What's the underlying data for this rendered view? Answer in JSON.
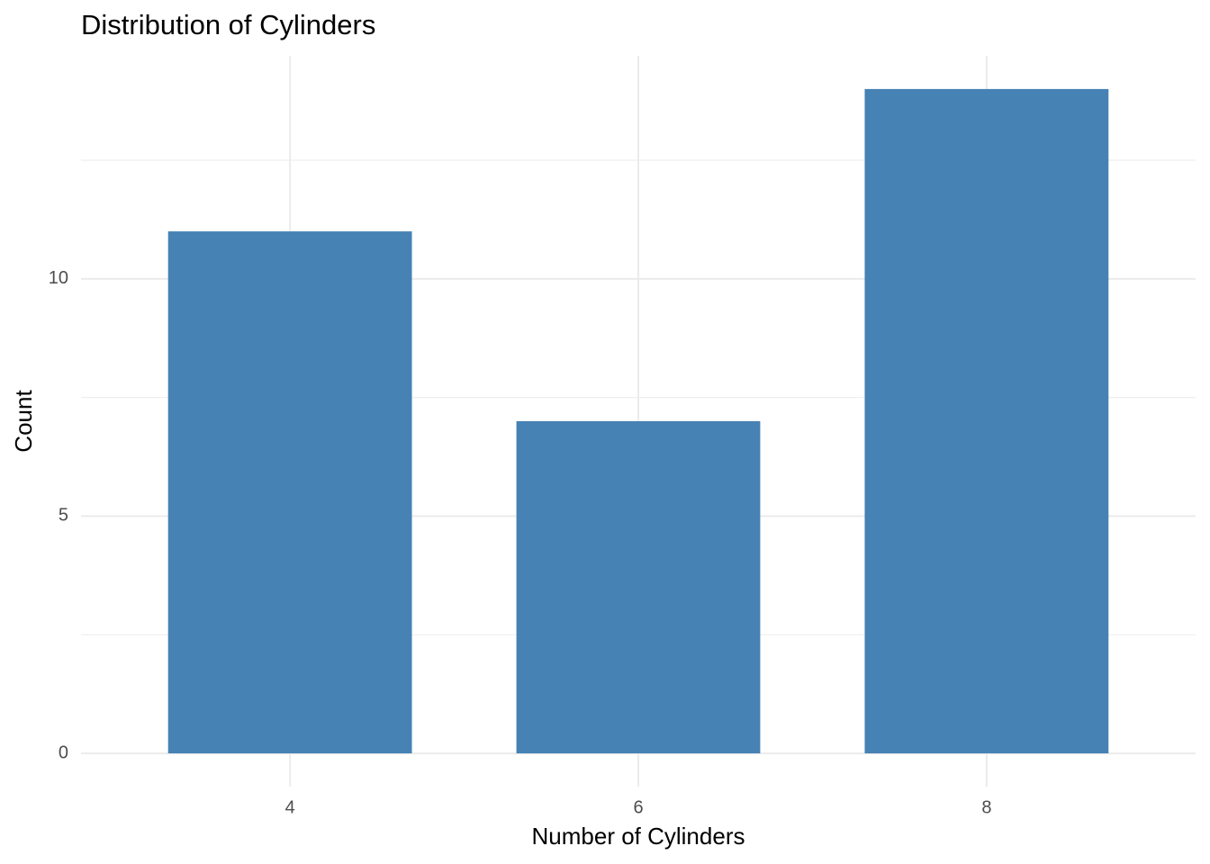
{
  "chart_data": {
    "type": "bar",
    "title": "Distribution of Cylinders",
    "x_label": "Number of Cylinders",
    "y_label": "Count",
    "categories": [
      "4",
      "6",
      "8"
    ],
    "values": [
      11,
      7,
      14
    ],
    "color": "#4682b4",
    "ylim": [
      -0.7,
      14.7
    ],
    "yticks": [
      0,
      5,
      10
    ],
    "grid": true
  }
}
